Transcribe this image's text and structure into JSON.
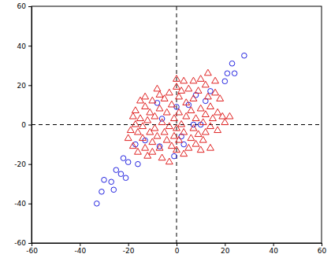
{
  "chart_data": {
    "type": "scatter",
    "xlim": [
      -60,
      60
    ],
    "xticks": [
      -60,
      -40,
      -20,
      0,
      20,
      40,
      60
    ],
    "ylim": [
      -60,
      60
    ],
    "yticks": [
      -60,
      -40,
      -20,
      0,
      20,
      40,
      60
    ],
    "series": [
      {
        "color": "#2323e0",
        "marker": "circle",
        "x": [
          -33,
          -31,
          -30,
          -27,
          -26,
          -25,
          -23,
          -22,
          -21,
          -20,
          -16,
          -17,
          -13,
          -8,
          -7,
          -6,
          -1,
          0,
          2,
          3,
          5,
          7,
          8,
          10,
          12,
          14,
          20,
          21,
          23,
          24,
          28
        ],
        "values": [
          -40,
          -34,
          -28,
          -29,
          -33,
          -23,
          -25,
          -17,
          -27,
          -19,
          -20,
          -10,
          -8,
          11,
          -11,
          3,
          -16,
          9,
          -6,
          -10,
          10,
          0,
          15,
          0,
          12,
          17,
          22,
          26,
          31,
          26,
          35
        ]
      },
      {
        "color": "#e02323",
        "marker": "triangle",
        "x": [
          -20,
          -19,
          -18,
          -18,
          -17,
          -17,
          -16,
          -16,
          -15,
          -15,
          -14,
          -14,
          -13,
          -13,
          -13,
          -12,
          -12,
          -11,
          -11,
          -10,
          -10,
          -10,
          -9,
          -9,
          -8,
          -8,
          -7,
          -7,
          -7,
          -6,
          -6,
          -5,
          -5,
          -4,
          -4,
          -3,
          -3,
          -3,
          -2,
          -2,
          -1,
          -1,
          0,
          0,
          0,
          0,
          1,
          1,
          1,
          2,
          2,
          3,
          3,
          3,
          4,
          4,
          5,
          5,
          6,
          6,
          7,
          7,
          7,
          8,
          8,
          9,
          9,
          10,
          10,
          10,
          11,
          11,
          12,
          12,
          12,
          13,
          13,
          14,
          14,
          14,
          15,
          16,
          16,
          17,
          17,
          18,
          19,
          20,
          22
        ],
        "values": [
          -7,
          -3,
          4,
          -11,
          7,
          0,
          -4,
          -14,
          12,
          3,
          -1,
          -7,
          9,
          -12,
          14,
          2,
          -16,
          6,
          -4,
          12,
          -9,
          -14,
          4,
          -2,
          18,
          -6,
          8,
          15,
          -12,
          1,
          -17,
          13,
          -4,
          6,
          -8,
          16,
          -1,
          -19,
          10,
          -11,
          3,
          -6,
          23,
          19,
          -2,
          -13,
          14,
          6,
          -8,
          17,
          0,
          22,
          -4,
          -15,
          11,
          4,
          -12,
          18,
          7,
          -7,
          22,
          13,
          -2,
          3,
          -10,
          17,
          -5,
          23,
          8,
          -13,
          1,
          -8,
          20,
          5,
          -4,
          26,
          14,
          9,
          -1,
          -12,
          3,
          22,
          16,
          6,
          -3,
          13,
          4,
          1,
          4
        ]
      }
    ]
  }
}
